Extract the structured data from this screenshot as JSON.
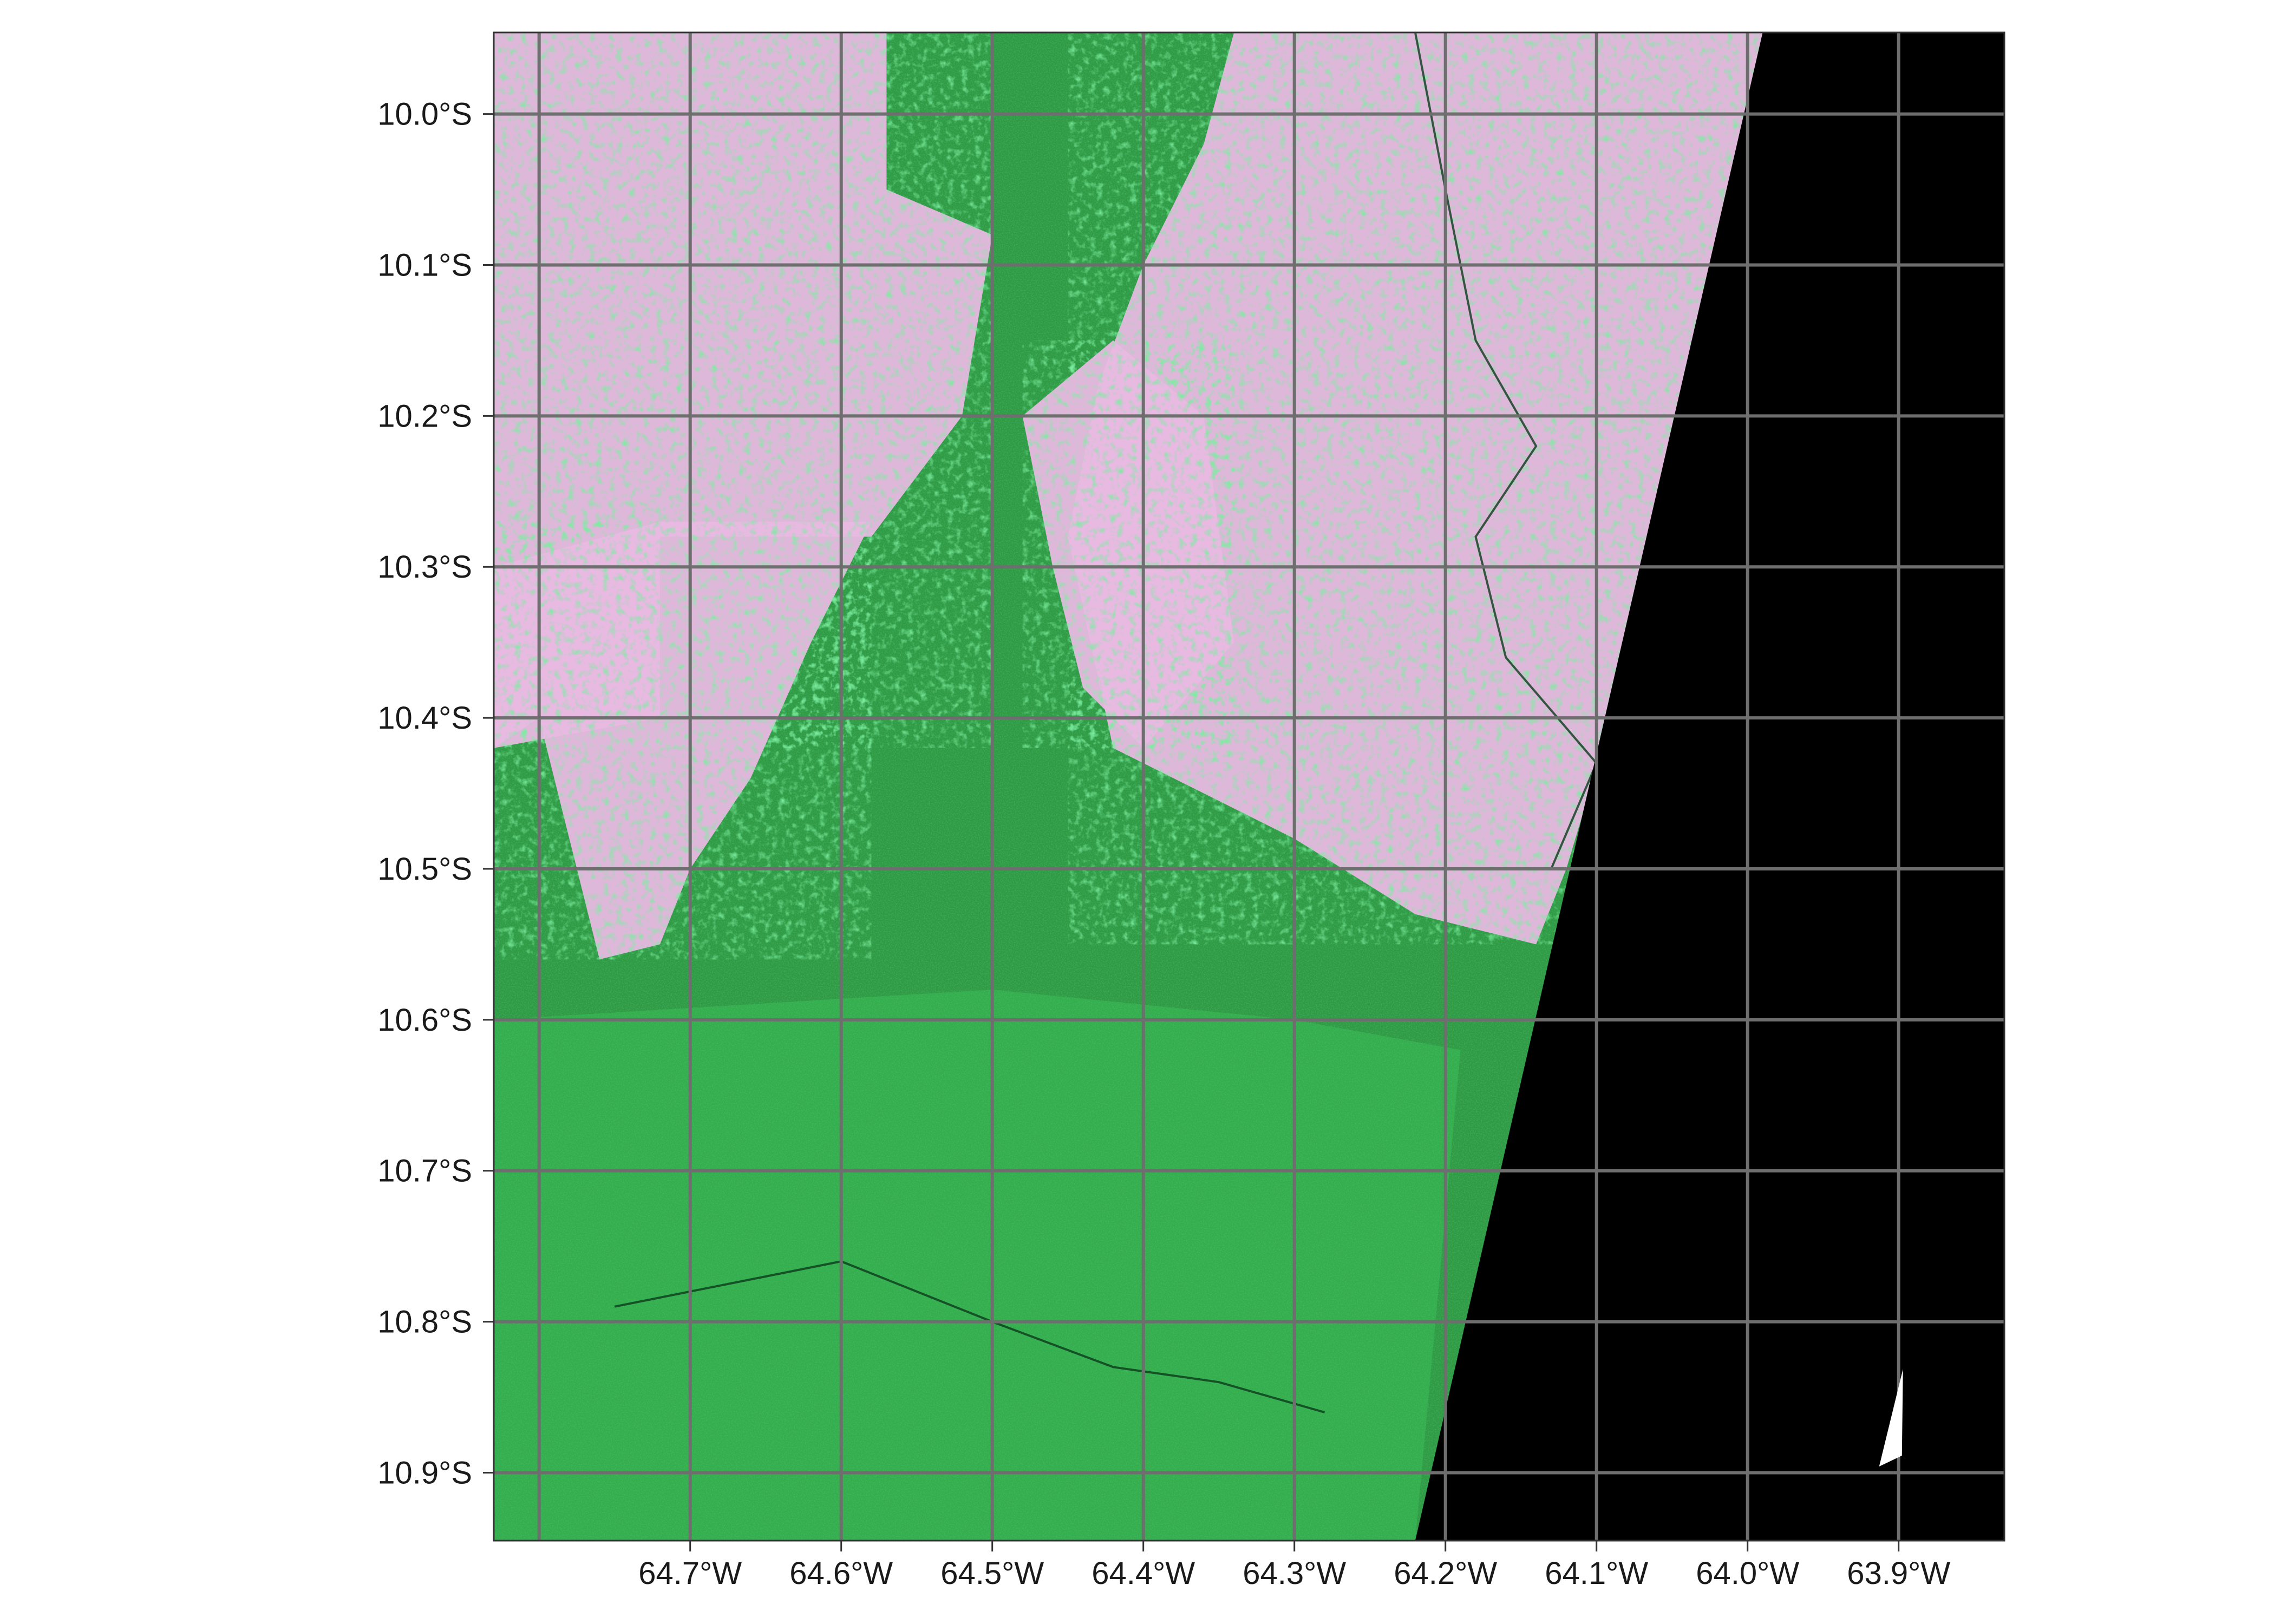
{
  "map": {
    "type": "raster-map",
    "colors": {
      "forest": "#2e9a43",
      "forest_light": "#3fd060",
      "cleared": "#e6a8dc",
      "cleared_pale": "#ead6ec",
      "no_data": "#000000",
      "grid": "#6e6e6e"
    },
    "extent": {
      "lon": [
        -64.83,
        -63.83
      ],
      "lat": [
        -10.945,
        -9.946
      ]
    },
    "gridlines": {
      "lon": [
        -64.8,
        -64.7,
        -64.6,
        -64.5,
        -64.4,
        -64.3,
        -64.2,
        -64.1,
        -64.0,
        -63.9
      ],
      "lat": [
        -10.0,
        -10.1,
        -10.2,
        -10.3,
        -10.4,
        -10.5,
        -10.6,
        -10.7,
        -10.8,
        -10.9
      ]
    },
    "x_tick_labels": [
      {
        "lon": -64.7,
        "label": "64.7°W"
      },
      {
        "lon": -64.6,
        "label": "64.6°W"
      },
      {
        "lon": -64.5,
        "label": "64.5°W"
      },
      {
        "lon": -64.4,
        "label": "64.4°W"
      },
      {
        "lon": -64.3,
        "label": "64.3°W"
      },
      {
        "lon": -64.2,
        "label": "64.2°W"
      },
      {
        "lon": -64.1,
        "label": "64.1°W"
      },
      {
        "lon": -64.0,
        "label": "64.0°W"
      },
      {
        "lon": -63.9,
        "label": "63.9°W"
      }
    ],
    "y_tick_labels": [
      {
        "lat": -10.0,
        "label": "10.0°S"
      },
      {
        "lat": -10.1,
        "label": "10.1°S"
      },
      {
        "lat": -10.2,
        "label": "10.2°S"
      },
      {
        "lat": -10.3,
        "label": "10.3°S"
      },
      {
        "lat": -10.4,
        "label": "10.4°S"
      },
      {
        "lat": -10.5,
        "label": "10.5°S"
      },
      {
        "lat": -10.6,
        "label": "10.6°S"
      },
      {
        "lat": -10.7,
        "label": "10.7°S"
      },
      {
        "lat": -10.8,
        "label": "10.8°S"
      },
      {
        "lat": -10.9,
        "label": "10.9°S"
      }
    ],
    "swath_edge": [
      {
        "lon": -63.99,
        "lat": -9.946
      },
      {
        "lon": -64.22,
        "lat": -10.945
      }
    ],
    "cleared_areas": [
      {
        "name": "northwest-clearing",
        "points": [
          [
            -64.83,
            -9.946
          ],
          [
            -64.57,
            -9.946
          ],
          [
            -64.57,
            -10.05
          ],
          [
            -64.5,
            -10.08
          ],
          [
            -64.52,
            -10.2
          ],
          [
            -64.58,
            -10.28
          ],
          [
            -64.72,
            -10.28
          ],
          [
            -64.72,
            -10.4
          ],
          [
            -64.83,
            -10.42
          ]
        ]
      },
      {
        "name": "west-clearing",
        "points": [
          [
            -64.72,
            -10.27
          ],
          [
            -64.58,
            -10.27
          ],
          [
            -64.62,
            -10.35
          ],
          [
            -64.66,
            -10.44
          ],
          [
            -64.7,
            -10.5
          ],
          [
            -64.72,
            -10.55
          ],
          [
            -64.76,
            -10.56
          ],
          [
            -64.8,
            -10.4
          ],
          [
            -64.83,
            -10.42
          ],
          [
            -64.83,
            -10.3
          ]
        ]
      },
      {
        "name": "northeast-clearing",
        "points": [
          [
            -64.34,
            -9.946
          ],
          [
            -63.99,
            -9.946
          ],
          [
            -64.02,
            -10.08
          ],
          [
            -64.06,
            -10.26
          ],
          [
            -64.09,
            -10.4
          ],
          [
            -64.12,
            -10.5
          ],
          [
            -64.14,
            -10.55
          ],
          [
            -64.22,
            -10.53
          ],
          [
            -64.3,
            -10.48
          ],
          [
            -64.36,
            -10.45
          ],
          [
            -64.42,
            -10.42
          ],
          [
            -64.45,
            -10.28
          ],
          [
            -64.43,
            -10.18
          ],
          [
            -64.4,
            -10.1
          ],
          [
            -64.36,
            -10.02
          ]
        ]
      },
      {
        "name": "central-clearing",
        "points": [
          [
            -64.48,
            -10.2
          ],
          [
            -64.42,
            -10.15
          ],
          [
            -64.36,
            -10.2
          ],
          [
            -64.34,
            -10.35
          ],
          [
            -64.4,
            -10.42
          ],
          [
            -64.44,
            -10.38
          ],
          [
            -64.46,
            -10.3
          ]
        ]
      }
    ],
    "forest_light_patches": [
      {
        "name": "south-forest-texture",
        "points": [
          [
            -64.83,
            -10.6
          ],
          [
            -64.5,
            -10.58
          ],
          [
            -64.3,
            -10.6
          ],
          [
            -64.19,
            -10.62
          ],
          [
            -64.22,
            -10.945
          ],
          [
            -64.83,
            -10.945
          ]
        ]
      }
    ],
    "rivers": [
      {
        "name": "east-river",
        "points": [
          [
            -64.22,
            -9.946
          ],
          [
            -64.2,
            -10.05
          ],
          [
            -64.18,
            -10.15
          ],
          [
            -64.14,
            -10.22
          ],
          [
            -64.18,
            -10.28
          ],
          [
            -64.16,
            -10.36
          ],
          [
            -64.1,
            -10.43
          ],
          [
            -64.13,
            -10.5
          ]
        ]
      },
      {
        "name": "south-river",
        "points": [
          [
            -64.75,
            -10.79
          ],
          [
            -64.6,
            -10.76
          ],
          [
            -64.5,
            -10.8
          ],
          [
            -64.42,
            -10.83
          ],
          [
            -64.35,
            -10.84
          ],
          [
            -64.28,
            -10.86
          ]
        ]
      }
    ],
    "north_arrow": {
      "lon": -63.905,
      "lat": -10.86
    }
  }
}
